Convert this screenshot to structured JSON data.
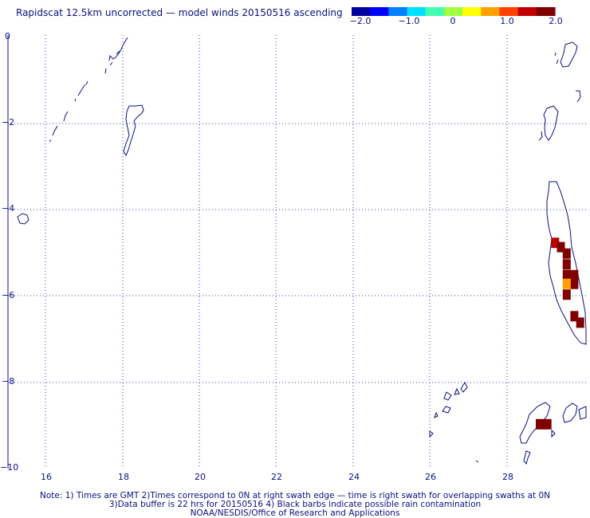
{
  "title": "Rapidscat 12.5km uncorrected — model winds 20150516 ascending",
  "colorbar": {
    "labels": [
      "−2.0",
      "−1.0",
      "0",
      "1.0",
      "2.0"
    ],
    "colors": [
      "#0000a0",
      "#0000ff",
      "#0080ff",
      "#00e0ff",
      "#40ffb0",
      "#a0ff40",
      "#ffff00",
      "#ffa000",
      "#ff4000",
      "#c00000",
      "#800000"
    ]
  },
  "map": {
    "x_axis_labels": [
      "16",
      "18",
      "20",
      "22",
      "24",
      "26",
      "28"
    ],
    "y_axis_labels": [
      "0",
      "−2",
      "−4",
      "−6",
      "−8",
      "−10"
    ],
    "grid": "dotted",
    "coastline_color": "#0a1080"
  },
  "data_cells": [
    {
      "lon": 29.25,
      "lat": -4.8,
      "value": 1.4
    },
    {
      "lon": 29.4,
      "lat": -4.9,
      "value": 2.0
    },
    {
      "lon": 29.55,
      "lat": -5.05,
      "value": 2.0
    },
    {
      "lon": 29.55,
      "lat": -5.3,
      "value": 2.0
    },
    {
      "lon": 29.55,
      "lat": -5.55,
      "value": 2.0
    },
    {
      "lon": 29.75,
      "lat": -5.55,
      "value": 2.0
    },
    {
      "lon": 29.75,
      "lat": -5.75,
      "value": 2.0
    },
    {
      "lon": 29.55,
      "lat": -5.75,
      "value": 0.9
    },
    {
      "lon": 29.55,
      "lat": -6.0,
      "value": 2.0
    },
    {
      "lon": 29.75,
      "lat": -6.5,
      "value": 2.0
    },
    {
      "lon": 29.9,
      "lat": -6.65,
      "value": 2.0
    },
    {
      "lon": 28.85,
      "lat": -9.0,
      "value": 2.0
    },
    {
      "lon": 29.05,
      "lat": -9.0,
      "value": 2.0
    }
  ],
  "notes": [
    "Note: 1) Times are GMT 2)Times correspond to 0N at right swath edge — time is right swath for overlapping swaths at 0N",
    "3)Data buffer is 22 hrs for 20150516 4) Black barbs indicate possible rain contamination",
    "NOAA/NESDIS/Office of Research and Applications"
  ]
}
